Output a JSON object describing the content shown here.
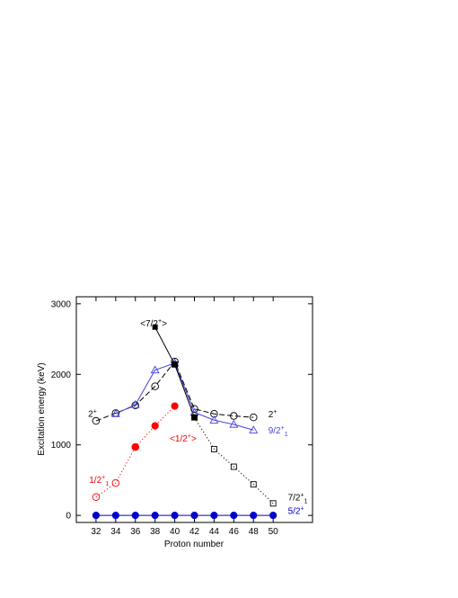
{
  "chart_data": {
    "type": "scatter",
    "xlabel": "Proton number",
    "ylabel": "Excitation energy (keV)",
    "xlim": [
      30,
      54
    ],
    "ylim": [
      -100,
      3100
    ],
    "x_ticks": [
      32,
      34,
      36,
      38,
      40,
      42,
      44,
      46,
      48,
      50
    ],
    "y_ticks": [
      0,
      1000,
      2000,
      3000
    ],
    "x_tick_labels": [
      "32",
      "34",
      "36",
      "38",
      "40",
      "42",
      "44",
      "46",
      "48",
      "50"
    ],
    "y_tick_labels": [
      "0",
      "1000",
      "2000",
      "3000"
    ],
    "grid": false,
    "series": [
      {
        "label": "<1/2+>",
        "color": "#ff0000",
        "marker": "filled-circle",
        "line": "dotted",
        "points": [
          [
            36,
            970
          ],
          [
            38,
            1270
          ],
          [
            40,
            1550
          ]
        ]
      },
      {
        "label": "1/2+1",
        "color": "#ff0000",
        "marker": "open-circle",
        "line": "dotted",
        "points": [
          [
            32,
            260
          ],
          [
            34,
            460
          ],
          [
            36,
            970
          ]
        ]
      },
      {
        "label": "2+",
        "color": "#000000",
        "marker": "open-circle",
        "line": "dashed",
        "points": [
          [
            32,
            1340
          ],
          [
            34,
            1450
          ],
          [
            36,
            1560
          ],
          [
            38,
            1830
          ],
          [
            40,
            2180
          ],
          [
            42,
            1510
          ],
          [
            44,
            1440
          ],
          [
            46,
            1410
          ],
          [
            48,
            1390
          ]
        ]
      },
      {
        "label": "9/2+1",
        "color": "#4444dd",
        "marker": "open-triangle",
        "line": "solid",
        "points": [
          [
            34,
            1440
          ],
          [
            36,
            1570
          ],
          [
            38,
            2060
          ],
          [
            40,
            2160
          ],
          [
            42,
            1460
          ],
          [
            44,
            1350
          ],
          [
            46,
            1290
          ],
          [
            48,
            1210
          ]
        ]
      },
      {
        "label": "<7/2+>",
        "color": "#000000",
        "marker": "filled-square",
        "line": "solid",
        "points": [
          [
            38,
            2670
          ],
          [
            40,
            2140
          ],
          [
            42,
            1390
          ]
        ]
      },
      {
        "label": "7/2+1",
        "color": "#000000",
        "marker": "open-square",
        "line": "dotted",
        "points": [
          [
            40,
            2140
          ],
          [
            42,
            1390
          ],
          [
            44,
            940
          ],
          [
            46,
            690
          ],
          [
            48,
            440
          ],
          [
            50,
            170
          ]
        ]
      },
      {
        "label": "5/2+",
        "color": "#0000cc",
        "marker": "filled-circle",
        "line": "solid",
        "points": [
          [
            32,
            0
          ],
          [
            34,
            0
          ],
          [
            36,
            0
          ],
          [
            38,
            0
          ],
          [
            40,
            0
          ],
          [
            42,
            0
          ],
          [
            44,
            0
          ],
          [
            46,
            0
          ],
          [
            48,
            0
          ],
          [
            50,
            0
          ]
        ]
      }
    ],
    "annotations": [
      {
        "base": "<7/2",
        "sup": "+",
        "sub": "",
        "tail": ">",
        "color": "#000000",
        "x": 36.5,
        "y": 2680
      },
      {
        "base": "2",
        "sup": "+",
        "sub": "",
        "tail": "",
        "color": "#000000",
        "x": 31.2,
        "y": 1400
      },
      {
        "base": "<1/2",
        "sup": "+",
        "sub": "",
        "tail": ">",
        "color": "#ff0000",
        "x": 39.5,
        "y": 1050
      },
      {
        "base": "1/2",
        "sup": "+",
        "sub": "1",
        "tail": "",
        "color": "#ff0000",
        "x": 31.3,
        "y": 460
      },
      {
        "base": "2",
        "sup": "+",
        "sub": "",
        "tail": "",
        "color": "#000000",
        "x": 49.5,
        "y": 1390
      },
      {
        "base": "9/2",
        "sup": "+",
        "sub": "1",
        "tail": "",
        "color": "#4444dd",
        "x": 49.5,
        "y": 1160
      },
      {
        "base": "7/2",
        "sup": "+",
        "sub": "1",
        "tail": "",
        "color": "#000000",
        "x": 51.5,
        "y": 210
      },
      {
        "base": "5/2",
        "sup": "+",
        "sub": "",
        "tail": "",
        "color": "#0000cc",
        "x": 51.5,
        "y": 20
      }
    ]
  }
}
